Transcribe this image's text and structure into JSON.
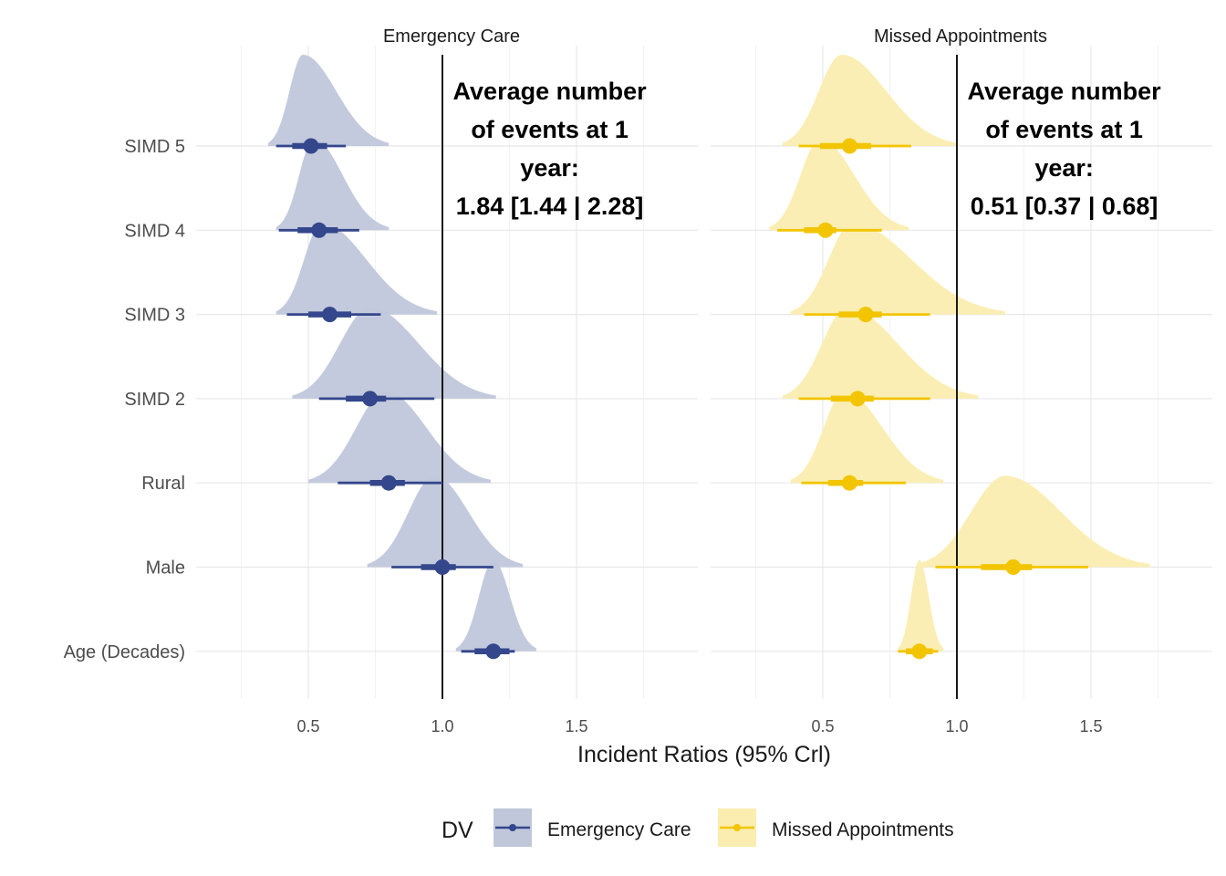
{
  "chart_data": {
    "type": "halfeye",
    "xlabel": "Incident Ratios (95% Crl)",
    "ylabel": "",
    "xlim": [
      0.25,
      2.0
    ],
    "x_ticks": [
      0.5,
      1.0,
      1.5
    ],
    "x_tick_labels": [
      "0.5",
      "1.0",
      "1.5"
    ],
    "reference_line": 1.0,
    "grid": true,
    "categories": [
      "SIMD 5",
      "SIMD 4",
      "SIMD 3",
      "SIMD 2",
      "Rural",
      "Male",
      "Age (Decades)"
    ],
    "legend": {
      "title": "DV",
      "position": "bottom",
      "entries": [
        "Emergency Care",
        "Missed Appointments"
      ]
    },
    "panels": [
      {
        "name": "Emergency Care",
        "color": "#34478C",
        "fill": "#C0C7DB",
        "annotation": [
          "Average number",
          "of events at 1",
          "year:",
          "1.84 [1.44 | 2.28]"
        ],
        "series": [
          {
            "category": "SIMD 5",
            "median": 0.51,
            "q66": [
              0.44,
              0.57
            ],
            "q95": [
              0.38,
              0.64
            ],
            "peak": 0.48,
            "dist_range": [
              0.35,
              0.8
            ]
          },
          {
            "category": "SIMD 4",
            "median": 0.54,
            "q66": [
              0.46,
              0.61
            ],
            "q95": [
              0.39,
              0.69
            ],
            "peak": 0.52,
            "dist_range": [
              0.38,
              0.8
            ]
          },
          {
            "category": "SIMD 3",
            "median": 0.58,
            "q66": [
              0.5,
              0.66
            ],
            "q95": [
              0.42,
              0.77
            ],
            "peak": 0.55,
            "dist_range": [
              0.38,
              0.98
            ]
          },
          {
            "category": "SIMD 2",
            "median": 0.73,
            "q66": [
              0.64,
              0.79
            ],
            "q95": [
              0.54,
              0.97
            ],
            "peak": 0.73,
            "dist_range": [
              0.44,
              1.2
            ]
          },
          {
            "category": "Rural",
            "median": 0.8,
            "q66": [
              0.73,
              0.86
            ],
            "q95": [
              0.61,
              1.0
            ],
            "peak": 0.79,
            "dist_range": [
              0.5,
              1.18
            ]
          },
          {
            "category": "Male",
            "median": 1.0,
            "q66": [
              0.92,
              1.05
            ],
            "q95": [
              0.81,
              1.19
            ],
            "peak": 0.97,
            "dist_range": [
              0.72,
              1.3
            ]
          },
          {
            "category": "Age (Decades)",
            "median": 1.19,
            "q66": [
              1.12,
              1.25
            ],
            "q95": [
              1.07,
              1.27
            ],
            "peak": 1.19,
            "dist_range": [
              1.05,
              1.35
            ]
          }
        ]
      },
      {
        "name": "Missed Appointments",
        "color": "#F2C500",
        "fill": "#FBEDB0",
        "annotation": [
          "Average number",
          "of events at 1",
          "year:",
          "0.51 [0.37 | 0.68]"
        ],
        "series": [
          {
            "category": "SIMD 5",
            "median": 0.6,
            "q66": [
              0.49,
              0.68
            ],
            "q95": [
              0.41,
              0.83
            ],
            "peak": 0.57,
            "dist_range": [
              0.35,
              1.0
            ]
          },
          {
            "category": "SIMD 4",
            "median": 0.51,
            "q66": [
              0.43,
              0.55
            ],
            "q95": [
              0.33,
              0.72
            ],
            "peak": 0.49,
            "dist_range": [
              0.3,
              0.82
            ]
          },
          {
            "category": "SIMD 3",
            "median": 0.66,
            "q66": [
              0.56,
              0.72
            ],
            "q95": [
              0.43,
              0.9
            ],
            "peak": 0.61,
            "dist_range": [
              0.38,
              1.18
            ]
          },
          {
            "category": "SIMD 2",
            "median": 0.63,
            "q66": [
              0.53,
              0.69
            ],
            "q95": [
              0.41,
              0.9
            ],
            "peak": 0.59,
            "dist_range": [
              0.35,
              1.08
            ]
          },
          {
            "category": "Rural",
            "median": 0.6,
            "q66": [
              0.52,
              0.65
            ],
            "q95": [
              0.42,
              0.81
            ],
            "peak": 0.58,
            "dist_range": [
              0.38,
              0.95
            ]
          },
          {
            "category": "Male",
            "median": 1.21,
            "q66": [
              1.09,
              1.28
            ],
            "q95": [
              0.92,
              1.49
            ],
            "peak": 1.18,
            "dist_range": [
              0.85,
              1.72
            ]
          },
          {
            "category": "Age (Decades)",
            "median": 0.86,
            "q66": [
              0.81,
              0.91
            ],
            "q95": [
              0.78,
              0.93
            ],
            "peak": 0.86,
            "dist_range": [
              0.78,
              0.95
            ]
          }
        ]
      }
    ]
  }
}
